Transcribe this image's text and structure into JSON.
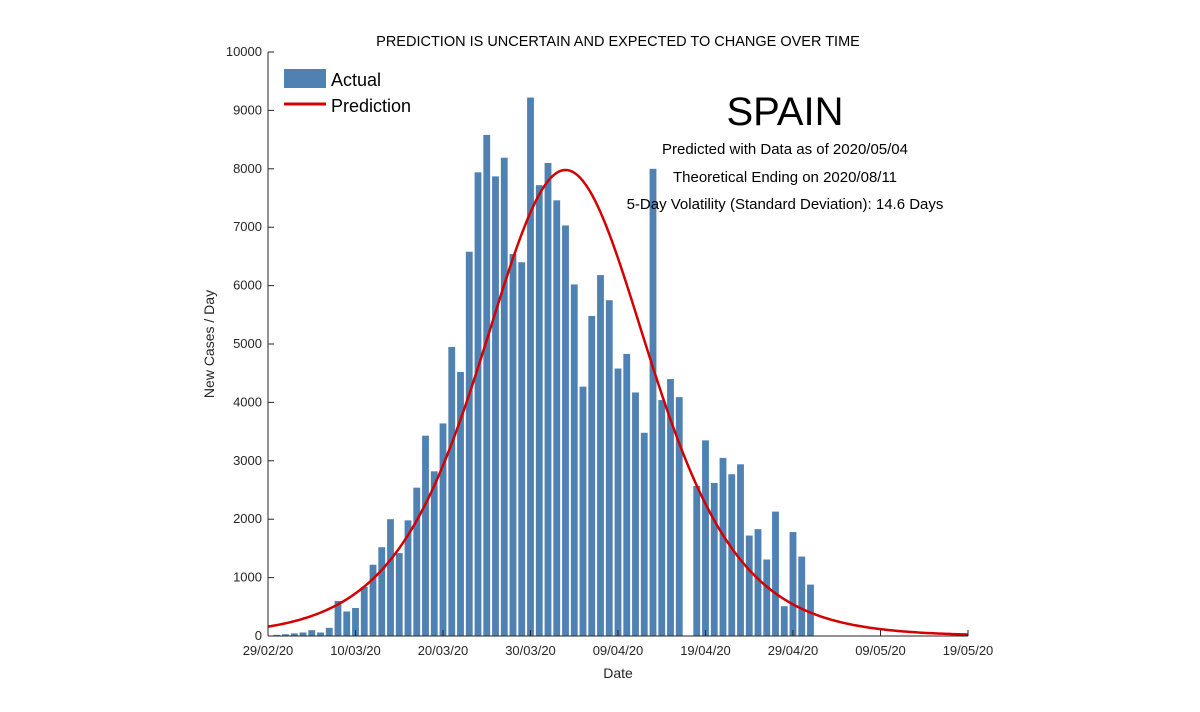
{
  "chart_data": {
    "type": "bar",
    "title": "PREDICTION IS UNCERTAIN AND EXPECTED TO CHANGE OVER TIME",
    "xlabel": "Date",
    "ylabel": "New Cases / Day",
    "ylim": [
      0,
      10000
    ],
    "yticks": [
      0,
      1000,
      2000,
      3000,
      4000,
      5000,
      6000,
      7000,
      8000,
      9000,
      10000
    ],
    "xlim": [
      "2020-02-29",
      "2020-05-19"
    ],
    "xticks": [
      "29/02/20",
      "10/03/20",
      "20/03/20",
      "30/03/20",
      "09/04/20",
      "19/04/20",
      "29/04/20",
      "09/05/20",
      "19/05/20"
    ],
    "legend": [
      "Actual",
      "Prediction"
    ],
    "legend_position": "top-left",
    "country": "SPAIN",
    "info_lines": [
      "Predicted with Data as of 2020/05/04",
      "Theoretical Ending on 2020/08/11",
      "5-Day Volatility (Standard Deviation): 14.6 Days"
    ],
    "bar_color": "#4f81b3",
    "line_color": "#d40000",
    "series": [
      {
        "name": "Actual",
        "kind": "bar",
        "x": [
          "2020-03-01",
          "2020-03-02",
          "2020-03-03",
          "2020-03-04",
          "2020-03-05",
          "2020-03-06",
          "2020-03-07",
          "2020-03-08",
          "2020-03-09",
          "2020-03-10",
          "2020-03-11",
          "2020-03-12",
          "2020-03-13",
          "2020-03-14",
          "2020-03-15",
          "2020-03-16",
          "2020-03-17",
          "2020-03-18",
          "2020-03-19",
          "2020-03-20",
          "2020-03-21",
          "2020-03-22",
          "2020-03-23",
          "2020-03-24",
          "2020-03-25",
          "2020-03-26",
          "2020-03-27",
          "2020-03-28",
          "2020-03-29",
          "2020-03-30",
          "2020-03-31",
          "2020-04-01",
          "2020-04-02",
          "2020-04-03",
          "2020-04-04",
          "2020-04-05",
          "2020-04-06",
          "2020-04-07",
          "2020-04-08",
          "2020-04-09",
          "2020-04-10",
          "2020-04-11",
          "2020-04-12",
          "2020-04-13",
          "2020-04-14",
          "2020-04-15",
          "2020-04-16",
          "2020-04-17",
          "2020-04-18",
          "2020-04-19",
          "2020-04-20",
          "2020-04-21",
          "2020-04-22",
          "2020-04-23",
          "2020-04-24",
          "2020-04-25",
          "2020-04-26",
          "2020-04-27",
          "2020-04-28",
          "2020-04-29",
          "2020-04-30",
          "2020-05-01",
          "2020-05-02",
          "2020-05-03"
        ],
        "values": [
          20,
          30,
          45,
          60,
          100,
          60,
          140,
          600,
          420,
          480,
          840,
          1220,
          1520,
          2000,
          1420,
          1980,
          2540,
          3430,
          2820,
          3640,
          4950,
          4520,
          6580,
          7940,
          8580,
          7870,
          8190,
          6540,
          6400,
          9220,
          7720,
          8100,
          7460,
          7030,
          6020,
          4270,
          5480,
          6180,
          5750,
          4580,
          4830,
          4170,
          3480,
          8000,
          4040,
          4400,
          4090,
          0,
          2570,
          3350,
          2620,
          3050,
          2770,
          2940,
          1720,
          1830,
          1310,
          2130,
          510,
          1780,
          1360,
          880,
          0,
          0
        ]
      },
      {
        "name": "Prediction",
        "kind": "line",
        "peak_date": "2020-04-03",
        "peak_value": 7980,
        "start_value": 160,
        "end_value": 160
      }
    ]
  }
}
